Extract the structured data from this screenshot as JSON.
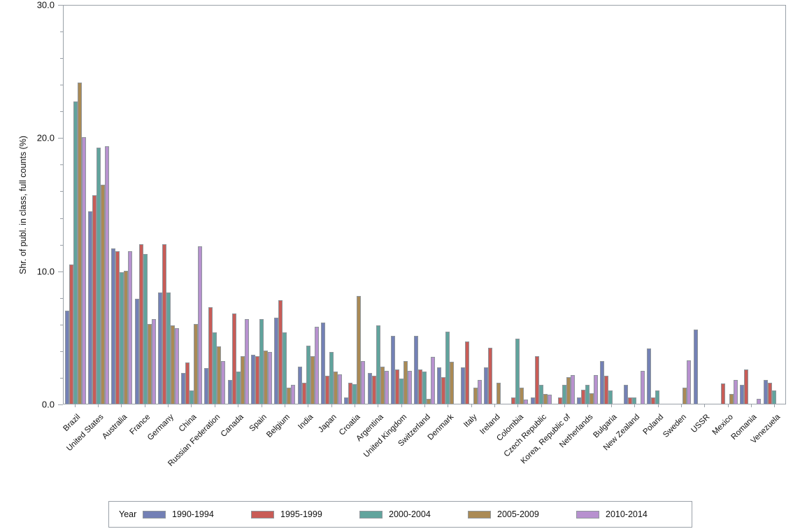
{
  "chart_data": {
    "type": "bar",
    "title": "",
    "xlabel": "",
    "ylabel": "Shr. of publ. in class, full counts (%)",
    "ylim": [
      0,
      30
    ],
    "ytick_major_labels": {
      "0": "0.0",
      "10": "10.0",
      "20": "20.0",
      "30": "30.0"
    },
    "ytick_minor_step": 2,
    "grid": false,
    "legend_position": "bottom",
    "legend_title": "Year",
    "categories": [
      "Brazil",
      "United States",
      "Australia",
      "France",
      "Germany",
      "China",
      "Russian Federation",
      "Canada",
      "Spain",
      "Belgium",
      "India",
      "Japan",
      "Croatia",
      "Argentina",
      "United Kingdom",
      "Switzerland",
      "Denmark",
      "Italy",
      "Ireland",
      "Colombia",
      "Czech Republic",
      "Korea, Republic of",
      "Netherlands",
      "Bulgaria",
      "New Zealand",
      "Poland",
      "Sweden",
      "USSR",
      "Mexico",
      "Romania",
      "Venezuela"
    ],
    "series": [
      {
        "name": "1990-1994",
        "color": "#7380b5",
        "values": [
          7.0,
          14.5,
          11.7,
          7.9,
          8.4,
          2.3,
          2.7,
          1.8,
          3.7,
          6.5,
          2.8,
          6.1,
          0.45,
          2.3,
          5.1,
          5.1,
          2.75,
          2.75,
          2.75,
          0,
          0.45,
          0,
          0.45,
          3.2,
          1.4,
          4.15,
          0,
          5.6,
          0,
          1.4,
          1.8
        ]
      },
      {
        "name": "1995-1999",
        "color": "#c85c57",
        "values": [
          10.5,
          15.7,
          11.5,
          12.0,
          12.0,
          3.1,
          7.3,
          6.8,
          3.6,
          7.8,
          1.6,
          2.1,
          1.6,
          2.1,
          2.6,
          2.6,
          2.0,
          4.7,
          4.2,
          0.5,
          3.6,
          0.5,
          1.05,
          2.1,
          0.5,
          0.5,
          0,
          0,
          1.55,
          2.6,
          1.6
        ]
      },
      {
        "name": "2000-2004",
        "color": "#61a49d",
        "values": [
          22.8,
          19.3,
          9.9,
          11.3,
          8.4,
          1.0,
          5.4,
          2.4,
          6.4,
          5.4,
          4.4,
          3.9,
          1.5,
          5.9,
          1.9,
          2.45,
          5.45,
          0,
          0,
          4.9,
          1.4,
          1.4,
          1.45,
          1.0,
          0.5,
          1.0,
          0,
          0,
          0,
          0,
          1.0
        ]
      },
      {
        "name": "2005-2009",
        "color": "#aa8a55",
        "values": [
          24.2,
          16.5,
          10.0,
          6.0,
          5.9,
          6.0,
          4.3,
          3.6,
          4.0,
          1.2,
          3.6,
          2.4,
          8.1,
          2.8,
          3.2,
          0.35,
          3.15,
          1.2,
          1.6,
          1.2,
          0.75,
          2.0,
          0.8,
          0,
          0,
          0,
          1.2,
          0,
          0.75,
          0,
          0
        ]
      },
      {
        "name": "2010-2014",
        "color": "#b791cf",
        "values": [
          20.1,
          19.4,
          11.5,
          6.4,
          5.7,
          11.85,
          3.2,
          6.4,
          3.9,
          1.4,
          5.8,
          2.2,
          3.2,
          2.5,
          2.5,
          3.55,
          0,
          1.8,
          0,
          0.3,
          0.7,
          2.15,
          2.15,
          0,
          2.5,
          0,
          3.25,
          0,
          1.8,
          0.35,
          0
        ]
      }
    ]
  },
  "colors": {
    "axis": "#9aa1a8",
    "bar_outline": "#8f969c",
    "text": "#111111",
    "background": "#ffffff"
  }
}
